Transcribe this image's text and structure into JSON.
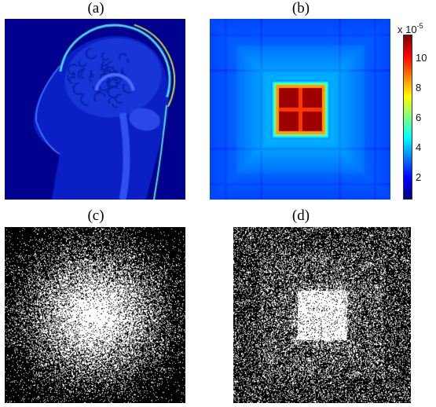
{
  "figure": {
    "panels": [
      {
        "label": "(a)",
        "content": "sagittal-mri-brain"
      },
      {
        "label": "(b)",
        "content": "sampling-density-map"
      },
      {
        "label": "(c)",
        "content": "random-sampling-mask-variable-density"
      },
      {
        "label": "(d)",
        "content": "random-sampling-mask-adapted"
      }
    ],
    "colorbar": {
      "exponent_prefix": "x 10",
      "exponent": "-5",
      "ticks": [
        "2",
        "4",
        "6",
        "8",
        "10"
      ],
      "colormap": "jet"
    },
    "colors": {
      "background": "#ffffff",
      "mask_on": "#ffffff",
      "mask_off": "#000000",
      "jet_low": "#00008f",
      "jet_high": "#800000"
    }
  }
}
